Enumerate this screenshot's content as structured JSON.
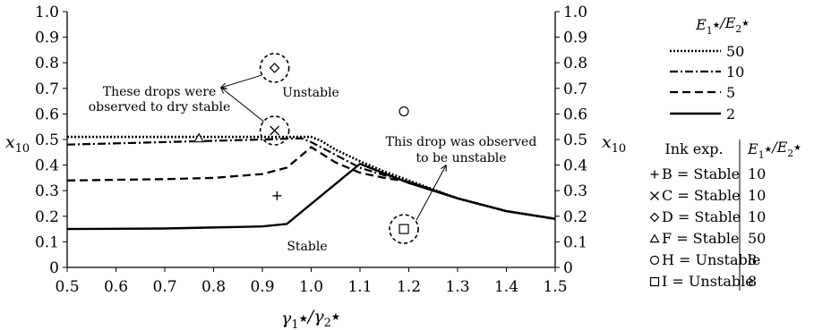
{
  "chart_data": {
    "type": "line",
    "xlabel": "γ₁*/γ₂*",
    "ylabel": "x₁₀",
    "ylabel_right": "x₁₀",
    "xlim": [
      0.5,
      1.5
    ],
    "ylim": [
      0,
      1.0
    ],
    "x_ticks": [
      "0.5",
      "0.6",
      "0.7",
      "0.8",
      "0.9",
      "1.0",
      "1.1",
      "1.2",
      "1.3",
      "1.4",
      "1.5"
    ],
    "y_ticks": [
      "0",
      "0.1",
      "0.2",
      "0.3",
      "0.4",
      "0.5",
      "0.6",
      "0.7",
      "0.8",
      "0.9",
      "1.0"
    ],
    "grid": false,
    "legend_title": "E₁*/E₂*",
    "series": [
      {
        "name": "50",
        "dash": "dotted",
        "x": [
          0.5,
          0.7,
          0.9,
          1.0,
          1.02,
          1.05,
          1.1,
          1.15,
          1.2,
          1.3,
          1.4,
          1.5
        ],
        "y": [
          0.51,
          0.51,
          0.51,
          0.51,
          0.495,
          0.46,
          0.415,
          0.375,
          0.34,
          0.27,
          0.22,
          0.19
        ]
      },
      {
        "name": "10",
        "dash": "dashdot",
        "x": [
          0.5,
          0.7,
          0.9,
          0.98,
          1.0,
          1.05,
          1.1,
          1.15,
          1.2,
          1.3,
          1.4,
          1.5
        ],
        "y": [
          0.48,
          0.49,
          0.5,
          0.505,
          0.49,
          0.44,
          0.39,
          0.36,
          0.335,
          0.27,
          0.22,
          0.19
        ]
      },
      {
        "name": "5",
        "dash": "dashed",
        "x": [
          0.5,
          0.7,
          0.8,
          0.9,
          0.95,
          1.0,
          1.05,
          1.1,
          1.15,
          1.2,
          1.3,
          1.4,
          1.5
        ],
        "y": [
          0.34,
          0.345,
          0.35,
          0.365,
          0.39,
          0.47,
          0.41,
          0.37,
          0.35,
          0.335,
          0.27,
          0.22,
          0.19
        ]
      },
      {
        "name": "2",
        "dash": "solid",
        "x": [
          0.5,
          0.7,
          0.9,
          0.95,
          1.1,
          1.2,
          1.3,
          1.4,
          1.5
        ],
        "y": [
          0.15,
          0.152,
          0.16,
          0.17,
          0.405,
          0.33,
          0.27,
          0.22,
          0.19
        ]
      }
    ],
    "points": [
      {
        "marker": "+",
        "x": 0.93,
        "y": 0.28,
        "circled": false
      },
      {
        "marker": "x",
        "x": 0.925,
        "y": 0.535,
        "circled": true
      },
      {
        "marker": "diamond",
        "x": 0.925,
        "y": 0.78,
        "circled": true
      },
      {
        "marker": "triangle",
        "x": 0.77,
        "y": 0.505,
        "circled": false
      },
      {
        "marker": "circle",
        "x": 1.19,
        "y": 0.61,
        "circled": false
      },
      {
        "marker": "square",
        "x": 1.19,
        "y": 0.15,
        "circled": true
      }
    ],
    "annotations": {
      "dry_stable_line1": "These drops were",
      "dry_stable_line2": "observed to dry stable",
      "unstable_region": "Unstable",
      "stable_region": "Stable",
      "unstable_drop_line1": "This drop was observed",
      "unstable_drop_line2": "to be unstable"
    },
    "ink_table": {
      "header_left": "Ink exp.",
      "header_right": "E₁*/E₂*",
      "rows": [
        {
          "marker": "+",
          "label": "B = Stable",
          "value": "10"
        },
        {
          "marker": "x",
          "label": "C = Stable",
          "value": "10"
        },
        {
          "marker": "diamond",
          "label": "D = Stable",
          "value": "10"
        },
        {
          "marker": "triangle",
          "label": "F = Stable",
          "value": "50"
        },
        {
          "marker": "circle",
          "label": "H = Unstable",
          "value": "8"
        },
        {
          "marker": "square",
          "label": "I = Unstable",
          "value": "8"
        }
      ]
    }
  }
}
